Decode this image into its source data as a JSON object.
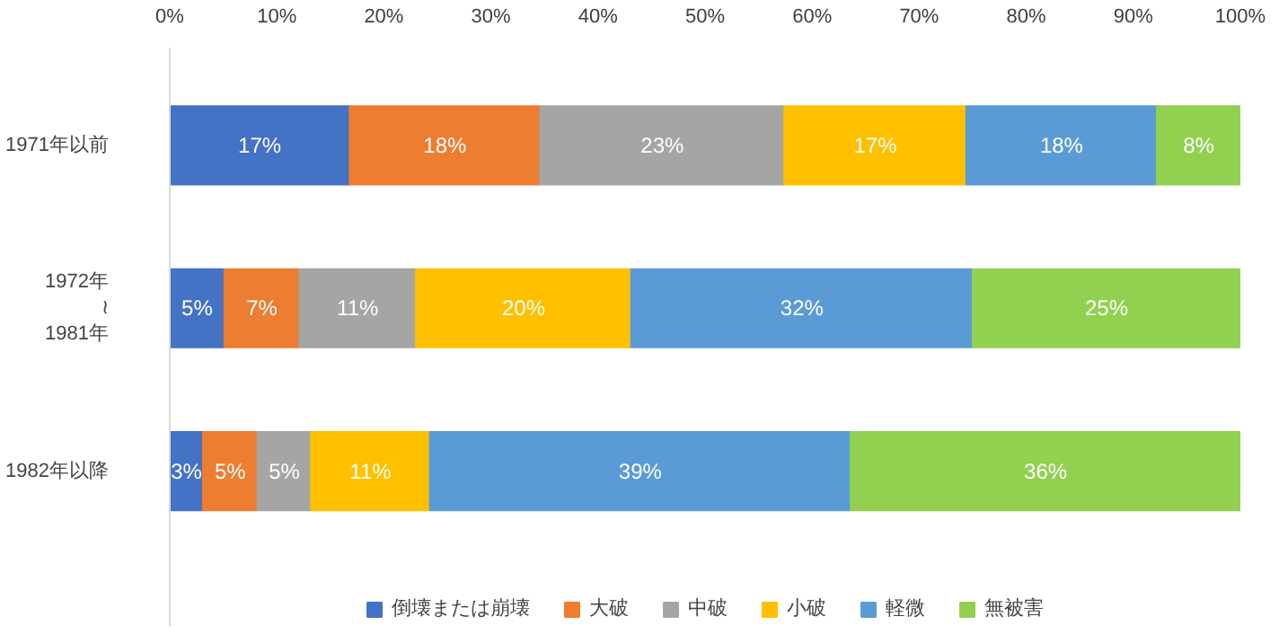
{
  "chart_data": {
    "type": "bar",
    "orientation": "horizontal",
    "stacked": true,
    "categories": [
      "1971年以前",
      "1972年\n≀\n1981年",
      "1982年以降"
    ],
    "series": [
      {
        "name": "倒壊または崩壊",
        "color": "#4472c4",
        "values": [
          16.8,
          5.1,
          3.1
        ],
        "value_labels": [
          "17%",
          "5%",
          "3%"
        ]
      },
      {
        "name": "大破",
        "color": "#ed7d31",
        "values": [
          17.8,
          7.0,
          5.1
        ],
        "value_labels": [
          "18%",
          "7%",
          "5%"
        ]
      },
      {
        "name": "中破",
        "color": "#a5a5a5",
        "values": [
          22.8,
          10.9,
          5.0
        ],
        "value_labels": [
          "23%",
          "11%",
          "5%"
        ]
      },
      {
        "name": "小破",
        "color": "#ffc000",
        "values": [
          17.0,
          20.1,
          11.1
        ],
        "value_labels": [
          "17%",
          "20%",
          "11%"
        ]
      },
      {
        "name": "軽微",
        "color": "#5b9bd5",
        "values": [
          17.8,
          31.9,
          39.3
        ],
        "value_labels": [
          "18%",
          "32%",
          "39%"
        ]
      },
      {
        "name": "無被害",
        "color": "#92d050",
        "values": [
          7.8,
          25.0,
          36.4
        ],
        "value_labels": [
          "8%",
          "25%",
          "36%"
        ]
      }
    ],
    "xlim": [
      0,
      100
    ],
    "xticks": [
      {
        "value": 0,
        "label": "0%"
      },
      {
        "value": 10,
        "label": "10%"
      },
      {
        "value": 20,
        "label": "20%"
      },
      {
        "value": 30,
        "label": "30%"
      },
      {
        "value": 40,
        "label": "40%"
      },
      {
        "value": 50,
        "label": "50%"
      },
      {
        "value": 60,
        "label": "60%"
      },
      {
        "value": 70,
        "label": "70%"
      },
      {
        "value": 80,
        "label": "80%"
      },
      {
        "value": 90,
        "label": "90%"
      },
      {
        "value": 100,
        "label": "100%"
      }
    ],
    "grid": false,
    "legend": "bottom"
  }
}
